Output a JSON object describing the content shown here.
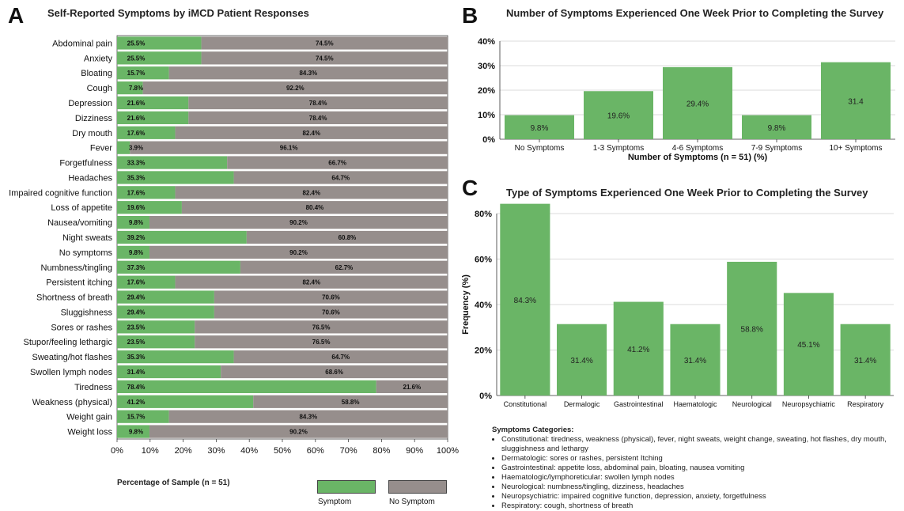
{
  "panels": {
    "a": {
      "letter": "A",
      "title": "Self-Reported Symptoms by iMCD Patient Responses",
      "footnote": "Percentage of Sample (n = 51)"
    },
    "b": {
      "letter": "B",
      "title": "Number of Symptoms Experienced One Week Prior to Completing the Survey"
    },
    "c": {
      "letter": "C",
      "title": "Type of Symptoms Experienced One Week Prior to Completing the Survey"
    }
  },
  "legend": {
    "symptom": "Symptom",
    "no_symptom": "No Symptom"
  },
  "colors": {
    "symptom": "#6ab566",
    "no_symptom": "#968e8c",
    "grid": "#cfcfcf",
    "axis": "#333333"
  },
  "notes": {
    "heading": "Symptoms Categories:",
    "items": [
      "Constitutional: tiredness, weakness (physical), fever, night sweats, weight change, sweating, hot flashes, dry mouth, sluggishness and lethargy",
      "Dermatologic: sores or rashes, persistent Itching",
      "Gastrointestinal: appetite loss, abdominal pain, bloating, nausea vomiting",
      "Haematologic/lymphoreticular: swollen lymph nodes",
      "Neurological: numbness/tingling, dizziness, headaches",
      "Neuropsychiatric: impaired cognitive function, depression, anxiety, forgetfulness",
      "Respiratory: cough, shortness of breath"
    ]
  },
  "chart_data": [
    {
      "type": "bar",
      "orientation": "horizontal",
      "stacked": true,
      "title": "Self-Reported Symptoms by iMCD Patient Responses",
      "xlabel": "Percentage of Sample (n = 51)",
      "xlim": [
        0,
        100
      ],
      "xticks": [
        "0%",
        "10%",
        "20%",
        "30%",
        "40%",
        "50%",
        "60%",
        "70%",
        "80%",
        "90%",
        "100%"
      ],
      "categories": [
        "Abdominal pain",
        "Anxiety",
        "Bloating",
        "Cough",
        "Depression",
        "Dizziness",
        "Dry mouth",
        "Fever",
        "Forgetfulness",
        "Headaches",
        "Impaired cognitive function",
        "Loss of appetite",
        "Nausea/vomiting",
        "Night sweats",
        "No symptoms",
        "Numbness/tingling",
        "Persistent itching",
        "Shortness of breath",
        "Sluggishness",
        "Sores or rashes",
        "Stupor/feeling lethargic",
        "Sweating/hot flashes",
        "Swollen lymph nodes",
        "Tiredness",
        "Weakness (physical)",
        "Weight gain",
        "Weight loss"
      ],
      "series": [
        {
          "name": "Symptom",
          "values": [
            25.5,
            25.5,
            15.7,
            7.8,
            21.6,
            21.6,
            17.6,
            3.9,
            33.3,
            35.3,
            17.6,
            19.6,
            9.8,
            39.2,
            9.8,
            37.3,
            17.6,
            29.4,
            29.4,
            23.5,
            23.5,
            35.3,
            31.4,
            78.4,
            41.2,
            15.7,
            9.8
          ],
          "labels": [
            "25.5%",
            "25.5%",
            "15.7%",
            "7.8%",
            "21.6%",
            "21.6%",
            "17.6%",
            "3.9%",
            "33.3%",
            "35.3%",
            "17.6%",
            "19.6%",
            "9.8%",
            "39.2%",
            "9.8%",
            "37.3%",
            "17.6%",
            "29.4%",
            "29.4%",
            "23.5%",
            "23.5%",
            "35.3%",
            "31.4%",
            "78.4%",
            "41.2%",
            "15.7%",
            "9.8%"
          ]
        },
        {
          "name": "No Symptom",
          "values": [
            74.5,
            74.5,
            84.3,
            92.2,
            78.4,
            78.4,
            82.4,
            96.1,
            66.7,
            64.7,
            82.4,
            80.4,
            90.2,
            60.8,
            90.2,
            62.7,
            82.4,
            70.6,
            70.6,
            76.5,
            76.5,
            64.7,
            68.6,
            21.6,
            58.8,
            84.3,
            90.2
          ],
          "labels": [
            "74.5%",
            "74.5%",
            "84.3%",
            "92.2%",
            "78.4%",
            "78.4%",
            "82.4%",
            "96.1%",
            "66.7%",
            "64.7%",
            "82.4%",
            "80.4%",
            "90.2%",
            "60.8%",
            "90.2%",
            "62.7%",
            "82.4%",
            "70.6%",
            "70.6%",
            "76.5%",
            "76.5%",
            "64.7%",
            "68.6%",
            "21.6%",
            "58.8%",
            "84.3%",
            "90.2%"
          ]
        }
      ],
      "legend": "bottom"
    },
    {
      "type": "bar",
      "title": "Number of Symptoms Experienced One Week Prior to Completing the Survey",
      "xlabel": "Number of Symptoms (n = 51) (%)",
      "ylabel": "",
      "ylim": [
        0,
        40
      ],
      "yticks": [
        "0%",
        "10%",
        "20%",
        "30%",
        "40%"
      ],
      "categories": [
        "No Symptoms",
        "1-3 Symptoms",
        "4-6 Symptoms",
        "7-9 Symptoms",
        "10+ Symptoms"
      ],
      "values": [
        9.8,
        19.6,
        29.4,
        9.8,
        31.4
      ],
      "labels": [
        "9.8%",
        "19.6%",
        "29.4%",
        "9.8%",
        "31.4"
      ],
      "grid": true
    },
    {
      "type": "bar",
      "title": "Type of Symptoms Experienced One Week Prior to Completing the Survey",
      "xlabel": "",
      "ylabel": "Frequency (%)",
      "ylim": [
        0,
        80
      ],
      "yticks": [
        "0%",
        "20%",
        "40%",
        "60%",
        "80%"
      ],
      "categories": [
        "Constitutional",
        "Dermalogic",
        "Gastrointestinal",
        "Haematologic",
        "Neurological",
        "Neuropsychiatric",
        "Respiratory"
      ],
      "values": [
        84.3,
        31.4,
        41.2,
        31.4,
        58.8,
        45.1,
        31.4
      ],
      "labels": [
        "84.3%",
        "31.4%",
        "41.2%",
        "31.4%",
        "58.8%",
        "45.1%",
        "31.4%"
      ],
      "grid": true
    }
  ]
}
